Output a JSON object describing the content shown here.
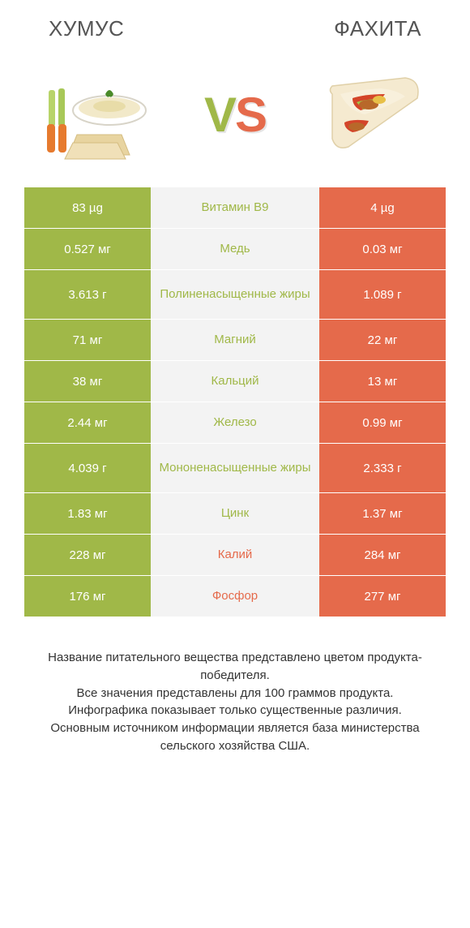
{
  "colors": {
    "left": "#a0b848",
    "right": "#e56a4b",
    "mid_bg": "#f3f3f3",
    "text": "#333333",
    "title": "#555555"
  },
  "left_title": "ХУМУС",
  "right_title": "ФАХИТА",
  "vs": {
    "v": "V",
    "s": "S"
  },
  "rows": [
    {
      "left": "83 µg",
      "mid": "Витамин B9",
      "right": "4 µg",
      "winner": "left",
      "tall": false
    },
    {
      "left": "0.527 мг",
      "mid": "Медь",
      "right": "0.03 мг",
      "winner": "left",
      "tall": false
    },
    {
      "left": "3.613 г",
      "mid": "Полиненасыщенные жиры",
      "right": "1.089 г",
      "winner": "left",
      "tall": true
    },
    {
      "left": "71 мг",
      "mid": "Магний",
      "right": "22 мг",
      "winner": "left",
      "tall": false
    },
    {
      "left": "38 мг",
      "mid": "Кальций",
      "right": "13 мг",
      "winner": "left",
      "tall": false
    },
    {
      "left": "2.44 мг",
      "mid": "Железо",
      "right": "0.99 мг",
      "winner": "left",
      "tall": false
    },
    {
      "left": "4.039 г",
      "mid": "Мононенасыщенные жиры",
      "right": "2.333 г",
      "winner": "left",
      "tall": true
    },
    {
      "left": "1.83 мг",
      "mid": "Цинк",
      "right": "1.37 мг",
      "winner": "left",
      "tall": false
    },
    {
      "left": "228 мг",
      "mid": "Калий",
      "right": "284 мг",
      "winner": "right",
      "tall": false
    },
    {
      "left": "176 мг",
      "mid": "Фосфор",
      "right": "277 мг",
      "winner": "right",
      "tall": false
    }
  ],
  "footer": {
    "l1": "Название питательного вещества представлено цветом продукта-победителя.",
    "l2": "Все значения представлены для 100 граммов продукта.",
    "l3": "Инфографика показывает только существенные различия.",
    "l4": "Основным источником информации является база министерства сельского хозяйства США."
  },
  "typography": {
    "title_fontsize": 26,
    "vs_fontsize": 60,
    "cell_fontsize": 15,
    "footer_fontsize": 15
  }
}
